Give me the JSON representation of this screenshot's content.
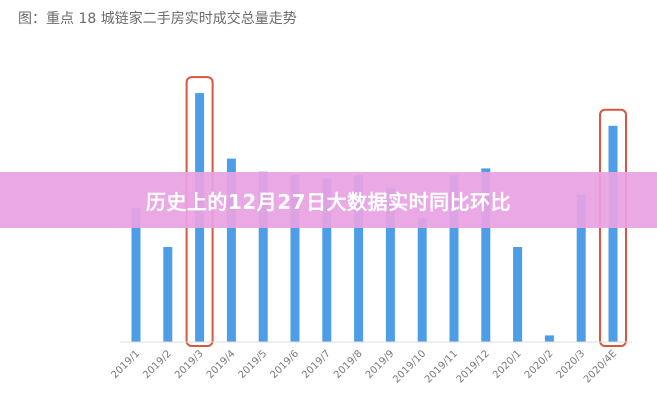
{
  "header": {
    "title": "图：重点 18 城链家二手房实时成交总量走势"
  },
  "banner": {
    "text": "历史上的12月27日大数据实时同比环比"
  },
  "colors": {
    "bar": "#4d9ee6",
    "highlight_box": "#d9573a",
    "banner_bg": "#e8a2e2"
  },
  "chart_data": {
    "type": "bar",
    "title": "图：重点 18 城链家二手房实时成交总量走势",
    "categories": [
      "2019/1",
      "2019/2",
      "2019/3",
      "2019/4",
      "2019/5",
      "2019/6",
      "2019/7",
      "2019/8",
      "2019/9",
      "2019/10",
      "2019/11",
      "2019/12",
      "2020/1",
      "2020/2",
      "2020/3",
      "2020/4E"
    ],
    "values": [
      41,
      29,
      76,
      56,
      52,
      51,
      50,
      51,
      47,
      38,
      51,
      53,
      29,
      2,
      45,
      66
    ],
    "highlighted": [
      "2019/3",
      "2020/4E"
    ],
    "ylim": [
      0,
      80
    ],
    "grid": false,
    "xlabel": "",
    "ylabel": ""
  }
}
